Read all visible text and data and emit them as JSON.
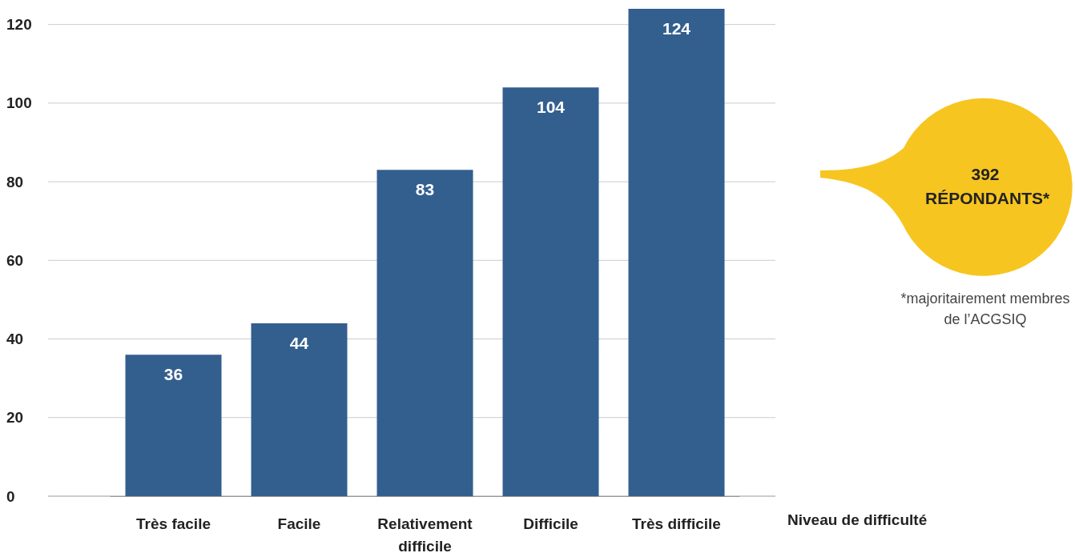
{
  "chart_data": {
    "type": "bar",
    "categories": [
      "Très facile",
      "Facile",
      "Relativement difficile",
      "Difficile",
      "Très difficile"
    ],
    "values": [
      36,
      44,
      83,
      104,
      124
    ],
    "color": "#335f8f",
    "xlabel": "Niveau de difficulté",
    "ylim": [
      0,
      124
    ],
    "yticks": [
      0,
      20,
      40,
      60,
      80,
      100,
      120
    ],
    "grid": "y",
    "data_labels": true,
    "annotations": [
      "392 RÉPONDANTS*",
      "*majoritairement membres de l’ACGSIQ"
    ]
  }
}
